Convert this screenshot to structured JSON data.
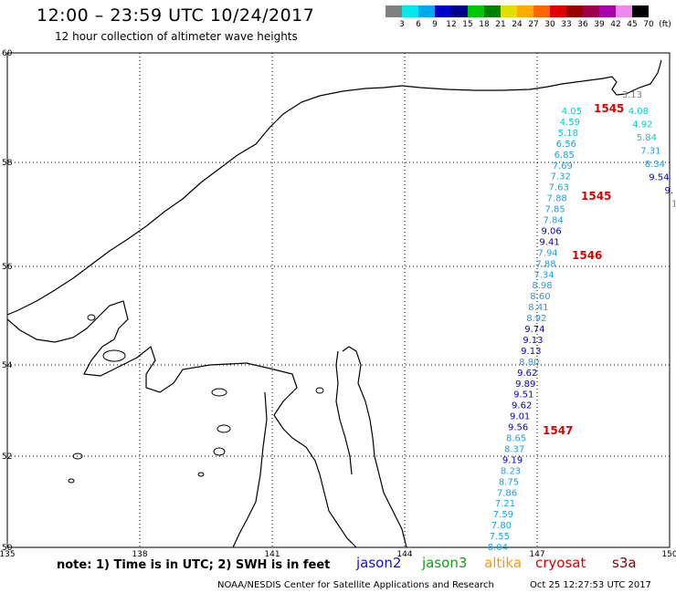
{
  "header": {
    "title": "12:00 – 23:59 UTC 10/24/2017",
    "subtitle": "12 hour collection of altimeter wave heights"
  },
  "legend": {
    "colors": [
      "#808080",
      "#00e8e8",
      "#00aaee",
      "#0000cc",
      "#00008b",
      "#00c800",
      "#008000",
      "#e0e000",
      "#ffaa00",
      "#ff6600",
      "#e00000",
      "#990000",
      "#a0004a",
      "#aa00aa",
      "#ee88ee",
      "#000000"
    ],
    "labels": [
      "3",
      "6",
      "9",
      "12",
      "15",
      "18",
      "21",
      "24",
      "27",
      "30",
      "33",
      "36",
      "39",
      "42",
      "45",
      "70",
      "(ft)"
    ]
  },
  "map": {
    "lat_labels": [
      "60",
      "58",
      "56",
      "54",
      "52",
      "50"
    ],
    "lon_labels": [
      "135",
      "138",
      "141",
      "144",
      "147",
      "150"
    ],
    "wave_heights": {
      "track_main": [
        "4.05",
        "4.59",
        "5.18",
        "6.56",
        "6.85",
        "7.69",
        "7.32",
        "7.63",
        "7.88",
        "7.85",
        "7.84",
        "9.06",
        "9.41",
        "7.94",
        "7.88",
        "7.34",
        "8.98",
        "8.60",
        "8.41",
        "8.92",
        "9.74",
        "9.13",
        "9.13",
        "8.80",
        "9.62",
        "9.89",
        "9.51",
        "9.62",
        "9.01",
        "9.56",
        "8.65",
        "8.37",
        "9.19",
        "8.23",
        "8.75",
        "7.86",
        "7.21",
        "7.59",
        "7.80",
        "7.55",
        "8.04"
      ],
      "track_east": [
        "4.08",
        "4.92",
        "5.84",
        "7.31",
        "8.34",
        "9.54",
        "9.",
        "1"
      ],
      "track_grey": [
        "3.13"
      ]
    },
    "time_tags": [
      "1545",
      "1545",
      "1546",
      "1547"
    ]
  },
  "footer": {
    "note": "note: 1) Time is in UTC; 2) SWH is in feet",
    "satellites": [
      {
        "name": "jason2",
        "color": "#1010e0"
      },
      {
        "name": "jason3",
        "color": "#10a010"
      },
      {
        "name": "altika",
        "color": "#ff9900"
      },
      {
        "name": "cryosat",
        "color": "#dd0000"
      },
      {
        "name": "s3a",
        "color": "#880000"
      }
    ],
    "credit": "NOAA/NESDIS Center for Satellite Applications and Research",
    "timestamp": "Oct 25 12:27:53 UTC 2017"
  }
}
